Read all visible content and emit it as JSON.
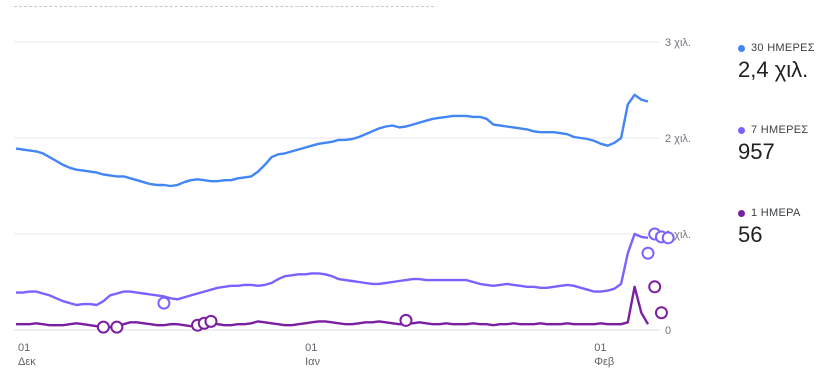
{
  "chart_data": {
    "type": "line",
    "x_ticks": [
      {
        "day": "01",
        "month": "Δεκ"
      },
      {
        "day": "01",
        "month": "Ιαν"
      },
      {
        "day": "01",
        "month": "Φεβ"
      }
    ],
    "y_ticks": [
      "3 χιλ.",
      "2 χιλ.",
      "1 χιλ.",
      "0"
    ],
    "ylim": [
      0,
      3000
    ],
    "grid": true,
    "series": [
      {
        "name": "30 ΗΜΕΡΕΣ",
        "color": "#4285f4",
        "summary": "2,4 χιλ.",
        "values": [
          1890,
          1880,
          1870,
          1860,
          1840,
          1800,
          1760,
          1720,
          1690,
          1670,
          1660,
          1650,
          1640,
          1620,
          1610,
          1600,
          1600,
          1580,
          1560,
          1540,
          1520,
          1510,
          1510,
          1500,
          1510,
          1540,
          1560,
          1570,
          1560,
          1550,
          1550,
          1560,
          1560,
          1580,
          1590,
          1600,
          1650,
          1720,
          1800,
          1830,
          1840,
          1860,
          1880,
          1900,
          1920,
          1940,
          1950,
          1960,
          1980,
          1980,
          1990,
          2010,
          2040,
          2070,
          2100,
          2120,
          2130,
          2110,
          2120,
          2140,
          2160,
          2180,
          2200,
          2210,
          2220,
          2230,
          2230,
          2230,
          2220,
          2220,
          2200,
          2140,
          2130,
          2120,
          2110,
          2100,
          2090,
          2070,
          2060,
          2060,
          2060,
          2050,
          2040,
          2010,
          2000,
          1990,
          1970,
          1940,
          1920,
          1950,
          2000,
          2350,
          2450,
          2400,
          2380
        ],
        "markers": []
      },
      {
        "name": "7 ΗΜΕΡΕΣ",
        "color": "#7b61ff",
        "summary": "957",
        "values": [
          390,
          390,
          400,
          400,
          380,
          360,
          330,
          300,
          280,
          260,
          270,
          270,
          260,
          300,
          360,
          380,
          400,
          400,
          390,
          380,
          370,
          360,
          350,
          330,
          320,
          340,
          360,
          380,
          400,
          420,
          440,
          450,
          460,
          460,
          470,
          470,
          460,
          470,
          490,
          530,
          560,
          570,
          580,
          580,
          590,
          590,
          580,
          560,
          530,
          520,
          510,
          500,
          490,
          480,
          480,
          490,
          500,
          510,
          520,
          530,
          530,
          520,
          520,
          520,
          520,
          520,
          520,
          520,
          500,
          480,
          470,
          460,
          470,
          480,
          470,
          460,
          450,
          450,
          440,
          440,
          450,
          460,
          470,
          460,
          440,
          420,
          400,
          400,
          410,
          430,
          480,
          800,
          1000,
          970,
          960
        ],
        "markers": [
          {
            "x": 22,
            "y": 280
          },
          {
            "x": 94,
            "y": 800
          },
          {
            "x": 95,
            "y": 1000
          },
          {
            "x": 96,
            "y": 970
          },
          {
            "x": 97,
            "y": 960
          }
        ]
      },
      {
        "name": "1 ΗΜΕΡΑ",
        "color": "#7b1fa2",
        "summary": "56",
        "values": [
          60,
          60,
          60,
          70,
          60,
          50,
          50,
          50,
          60,
          70,
          60,
          50,
          40,
          30,
          30,
          40,
          60,
          80,
          80,
          70,
          60,
          50,
          50,
          60,
          60,
          50,
          40,
          50,
          60,
          70,
          60,
          50,
          50,
          60,
          60,
          70,
          90,
          80,
          70,
          60,
          50,
          50,
          60,
          70,
          80,
          90,
          90,
          80,
          70,
          60,
          60,
          70,
          80,
          80,
          90,
          80,
          70,
          60,
          60,
          70,
          80,
          70,
          60,
          60,
          70,
          60,
          60,
          60,
          70,
          60,
          60,
          50,
          60,
          60,
          70,
          60,
          60,
          60,
          70,
          60,
          60,
          60,
          70,
          60,
          60,
          60,
          60,
          70,
          60,
          60,
          60,
          80,
          450,
          180,
          60
        ],
        "markers": [
          {
            "x": 13,
            "y": 30
          },
          {
            "x": 15,
            "y": 30
          },
          {
            "x": 27,
            "y": 50
          },
          {
            "x": 28,
            "y": 70
          },
          {
            "x": 29,
            "y": 90
          },
          {
            "x": 58,
            "y": 100
          },
          {
            "x": 95,
            "y": 450
          },
          {
            "x": 96,
            "y": 180
          }
        ]
      }
    ]
  }
}
